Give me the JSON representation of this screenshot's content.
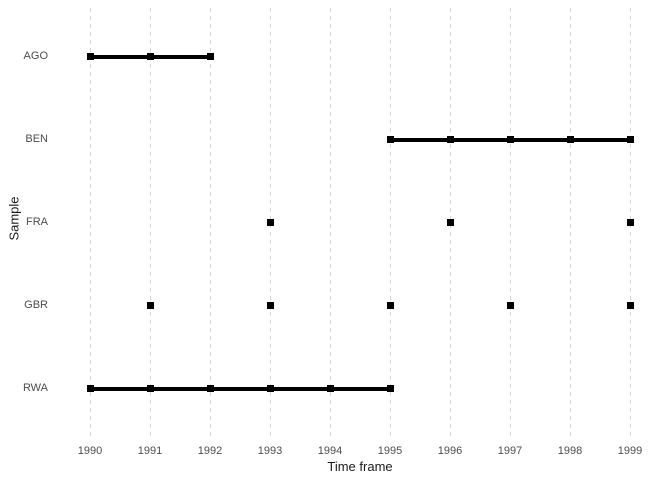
{
  "chart_data": {
    "type": "scatter",
    "variant": "timeline-range-dot",
    "title": "",
    "xlabel": "Time frame",
    "ylabel": "Sample",
    "x_ticks": [
      1990,
      1991,
      1992,
      1993,
      1994,
      1995,
      1996,
      1997,
      1998,
      1999
    ],
    "xlim": [
      1990,
      1999
    ],
    "categories": [
      "AGO",
      "BEN",
      "FRA",
      "GBR",
      "RWA"
    ],
    "series": [
      {
        "name": "AGO",
        "points": [
          1990,
          1991,
          1992
        ],
        "range": [
          1990,
          1992
        ]
      },
      {
        "name": "BEN",
        "points": [
          1995,
          1996,
          1997,
          1998,
          1999
        ],
        "range": [
          1995,
          1999
        ]
      },
      {
        "name": "FRA",
        "points": [
          1993,
          1996,
          1999
        ],
        "range": null
      },
      {
        "name": "GBR",
        "points": [
          1991,
          1993,
          1995,
          1997,
          1999
        ],
        "range": null
      },
      {
        "name": "RWA",
        "points": [
          1990,
          1991,
          1992,
          1993,
          1994,
          1995
        ],
        "range": [
          1990,
          1995
        ]
      }
    ],
    "grid": "vertical-dashed",
    "legend": "none",
    "colors": {
      "marker": "#000000",
      "range_line": "#000000",
      "gridline": "#d9d9d9",
      "axis_text": "#4d4d4d",
      "axis_title": "#1a1a1a",
      "background": "#ffffff"
    }
  }
}
